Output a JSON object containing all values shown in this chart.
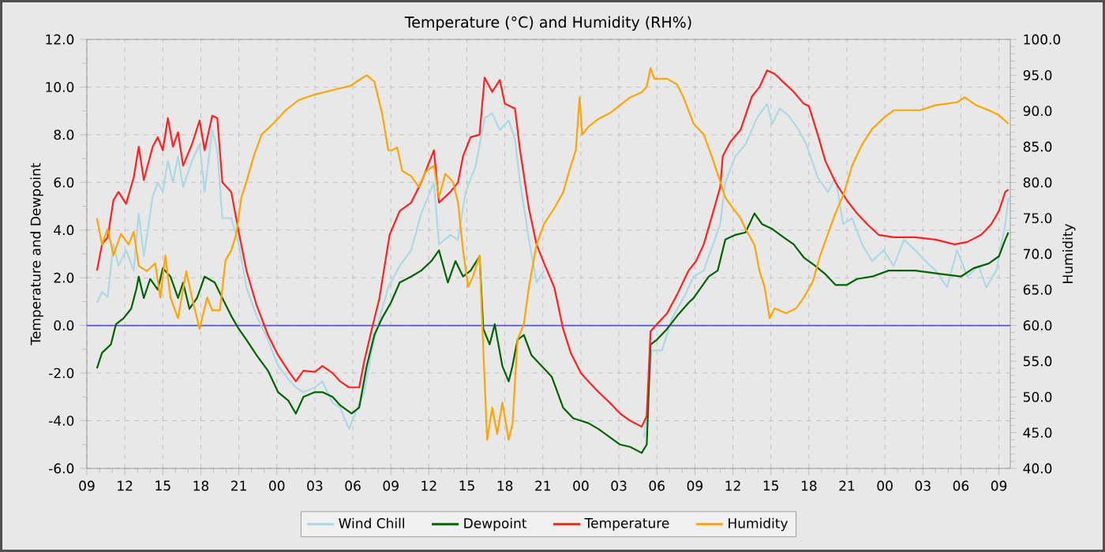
{
  "chart_data": {
    "type": "line",
    "title": "Temperature (°C) and Humidity (RH%)",
    "ylabel": "Temperature and Dewpoint",
    "y2label": "Humidity",
    "xlim": [
      9,
      81.9
    ],
    "ylim": [
      -6,
      12
    ],
    "y2lim": [
      40,
      100
    ],
    "xticks": [
      {
        "value": 9,
        "label": "09"
      },
      {
        "value": 12,
        "label": "12"
      },
      {
        "value": 15,
        "label": "15"
      },
      {
        "value": 18,
        "label": "18"
      },
      {
        "value": 21,
        "label": "21"
      },
      {
        "value": 24,
        "label": "00"
      },
      {
        "value": 27,
        "label": "03"
      },
      {
        "value": 30,
        "label": "06"
      },
      {
        "value": 33,
        "label": "09"
      },
      {
        "value": 36,
        "label": "12"
      },
      {
        "value": 39,
        "label": "15"
      },
      {
        "value": 42,
        "label": "18"
      },
      {
        "value": 45,
        "label": "21"
      },
      {
        "value": 48,
        "label": "00"
      },
      {
        "value": 51,
        "label": "03"
      },
      {
        "value": 54,
        "label": "06"
      },
      {
        "value": 57,
        "label": "09"
      },
      {
        "value": 60,
        "label": "12"
      },
      {
        "value": 63,
        "label": "15"
      },
      {
        "value": 66,
        "label": "18"
      },
      {
        "value": 69,
        "label": "21"
      },
      {
        "value": 72,
        "label": "00"
      },
      {
        "value": 75,
        "label": "03"
      },
      {
        "value": 78,
        "label": "06"
      },
      {
        "value": 81,
        "label": "09"
      }
    ],
    "yticks": [
      {
        "value": -6,
        "label": "-6.0"
      },
      {
        "value": -4,
        "label": "-4.0"
      },
      {
        "value": -2,
        "label": "-2.0"
      },
      {
        "value": 0,
        "label": "0.0"
      },
      {
        "value": 2,
        "label": "2.0"
      },
      {
        "value": 4,
        "label": "4.0"
      },
      {
        "value": 6,
        "label": "6.0"
      },
      {
        "value": 8,
        "label": "8.0"
      },
      {
        "value": 10,
        "label": "10.0"
      },
      {
        "value": 12,
        "label": "12.0"
      }
    ],
    "y2ticks": [
      {
        "value": 40,
        "label": "40.0"
      },
      {
        "value": 45,
        "label": "45.0"
      },
      {
        "value": 50,
        "label": "50.0"
      },
      {
        "value": 55,
        "label": "55.0"
      },
      {
        "value": 60,
        "label": "60.0"
      },
      {
        "value": 65,
        "label": "65.0"
      },
      {
        "value": 70,
        "label": "70.0"
      },
      {
        "value": 75,
        "label": "75.0"
      },
      {
        "value": 80,
        "label": "80.0"
      },
      {
        "value": 85,
        "label": "85.0"
      },
      {
        "value": 90,
        "label": "90.0"
      },
      {
        "value": 95,
        "label": "95.0"
      },
      {
        "value": 100,
        "label": "100.0"
      }
    ],
    "grid": true,
    "legend": "bottom",
    "ref_lines": [
      {
        "axis": "y",
        "value": 0,
        "color": "#6060e0"
      }
    ],
    "series": [
      {
        "name": "Wind Chill",
        "color": "#add8e6",
        "x": [
          9.8,
          10.2,
          10.65,
          11.1,
          11.5,
          12.1,
          12.7,
          13.1,
          13.5,
          14.2,
          14.6,
          15.0,
          15.4,
          15.8,
          16.2,
          16.6,
          17.3,
          17.9,
          18.3,
          18.9,
          19.3,
          19.7,
          20.4,
          21.0,
          21.6,
          22.4,
          23.3,
          24.1,
          24.9,
          25.5,
          26.1,
          27.0,
          27.6,
          28.4,
          29.0,
          29.7,
          30.5,
          30.9,
          31.5,
          32.1,
          32.8,
          33.7,
          34.6,
          35.4,
          36.4,
          36.8,
          37.7,
          38.3,
          38.9,
          39.7,
          40.4,
          41.0,
          41.6,
          42.3,
          42.8,
          43.2,
          43.9,
          44.5,
          45.1,
          49.0,
          53.0,
          53.6,
          54.4,
          55.2,
          56.1,
          56.9,
          57.7,
          59.0,
          59.4,
          60.2,
          61.0,
          61.9,
          62.7,
          63.1,
          63.7,
          64.4,
          65.2,
          65.8,
          66.7,
          67.5,
          68.1,
          68.7,
          69.4,
          70.2,
          71.0,
          71.9,
          72.7,
          73.5,
          74.4,
          75.2,
          76.0,
          76.9,
          77.7,
          78.5,
          79.4,
          80.0,
          80.8,
          81.5,
          81.75
        ],
        "values": [
          0.95,
          1.4,
          1.2,
          3.4,
          2.5,
          3.15,
          2.3,
          4.7,
          2.9,
          5.4,
          6.0,
          5.6,
          6.9,
          6.0,
          7.1,
          5.8,
          6.9,
          7.6,
          5.6,
          8.2,
          7.35,
          4.5,
          4.5,
          3.4,
          1.6,
          0.4,
          -0.6,
          -1.7,
          -2.25,
          -2.6,
          -2.8,
          -2.6,
          -2.35,
          -3.25,
          -3.45,
          -4.35,
          -3.25,
          -2.8,
          -1.05,
          0.3,
          1.6,
          2.5,
          3.15,
          4.7,
          6.0,
          3.4,
          3.8,
          3.6,
          5.6,
          6.7,
          8.7,
          8.9,
          8.2,
          8.6,
          7.8,
          6.0,
          3.6,
          1.8,
          2.3,
          null,
          -4.7,
          -1.05,
          -1.05,
          0.3,
          1.15,
          2.05,
          2.3,
          4.25,
          6.0,
          7.1,
          7.6,
          8.7,
          9.3,
          8.45,
          9.1,
          8.8,
          8.2,
          7.6,
          6.2,
          5.6,
          6.2,
          4.25,
          4.5,
          3.4,
          2.7,
          3.15,
          2.5,
          3.6,
          3.15,
          2.7,
          2.3,
          1.6,
          3.15,
          2.05,
          2.5,
          1.6,
          2.3,
          4.25,
          5.35
        ]
      },
      {
        "name": "Dewpoint",
        "color": "#006400",
        "x": [
          9.8,
          10.2,
          10.9,
          11.3,
          11.9,
          12.5,
          12.9,
          13.1,
          13.5,
          14.0,
          14.6,
          15.0,
          15.6,
          16.2,
          16.6,
          17.1,
          17.7,
          18.3,
          19.1,
          19.7,
          20.4,
          21.0,
          21.6,
          22.4,
          23.3,
          24.1,
          24.9,
          25.5,
          26.1,
          27.0,
          27.6,
          28.4,
          29.0,
          29.9,
          30.5,
          31.1,
          31.7,
          32.3,
          33.0,
          33.7,
          34.6,
          35.4,
          36.2,
          36.8,
          37.5,
          38.1,
          38.7,
          39.3,
          40.0,
          40.3,
          40.8,
          41.2,
          41.8,
          42.3,
          42.6,
          43.0,
          43.5,
          44.1,
          44.9,
          45.7,
          46.6,
          47.4,
          48.0,
          48.6,
          49.4,
          50.3,
          51.1,
          51.9,
          52.8,
          53.2,
          53.5,
          54.0,
          54.8,
          55.6,
          56.5,
          56.9,
          58.1,
          58.8,
          59.4,
          60.2,
          61.0,
          61.7,
          62.3,
          63.1,
          64.0,
          64.8,
          65.6,
          66.5,
          67.3,
          68.1,
          69.0,
          69.8,
          71.0,
          72.3,
          74.4,
          76.5,
          78.0,
          79.0,
          80.2,
          81.0,
          81.5,
          81.75
        ],
        "values": [
          -1.8,
          -1.15,
          -0.8,
          0.05,
          0.3,
          0.7,
          1.5,
          2.05,
          1.15,
          1.95,
          1.5,
          2.4,
          2.05,
          1.15,
          1.8,
          0.7,
          1.15,
          2.05,
          1.8,
          1.15,
          0.4,
          -0.15,
          -0.6,
          -1.25,
          -1.9,
          -2.8,
          -3.15,
          -3.7,
          -3.0,
          -2.8,
          -2.8,
          -3.0,
          -3.35,
          -3.7,
          -3.45,
          -1.7,
          -0.4,
          0.3,
          0.95,
          1.8,
          2.05,
          2.3,
          2.7,
          3.15,
          1.8,
          2.7,
          2.05,
          2.3,
          2.9,
          -0.15,
          -0.8,
          0.05,
          -1.7,
          -2.35,
          -1.7,
          -0.6,
          -0.4,
          -1.25,
          -1.7,
          -2.15,
          -3.45,
          -3.9,
          -4.0,
          -4.1,
          -4.35,
          -4.7,
          -5.0,
          -5.1,
          -5.35,
          -5.0,
          -0.8,
          -0.6,
          -0.15,
          0.4,
          0.95,
          1.15,
          2.05,
          2.3,
          3.6,
          3.8,
          3.9,
          4.7,
          4.25,
          4.05,
          3.7,
          3.4,
          2.85,
          2.5,
          2.15,
          1.7,
          1.7,
          1.95,
          2.05,
          2.3,
          2.3,
          2.15,
          2.05,
          2.4,
          2.6,
          2.9,
          3.6,
          3.9
        ]
      },
      {
        "name": "Temperature",
        "color": "#ff2020",
        "x": [
          9.8,
          10.2,
          10.65,
          11.1,
          11.5,
          12.1,
          12.7,
          13.1,
          13.5,
          14.2,
          14.6,
          15.0,
          15.4,
          15.8,
          16.2,
          16.6,
          17.3,
          17.9,
          18.3,
          18.9,
          19.3,
          19.7,
          20.4,
          21.0,
          21.6,
          22.4,
          23.3,
          24.1,
          24.9,
          25.5,
          26.1,
          27.0,
          27.6,
          28.4,
          29.0,
          29.7,
          30.5,
          30.9,
          31.5,
          32.1,
          32.9,
          33.7,
          34.6,
          35.4,
          36.4,
          36.8,
          37.7,
          38.3,
          38.7,
          39.3,
          40.0,
          40.4,
          41.0,
          41.6,
          42.0,
          42.8,
          43.2,
          43.9,
          44.5,
          45.1,
          45.9,
          46.6,
          47.2,
          48.0,
          48.6,
          49.4,
          50.3,
          51.1,
          51.9,
          52.8,
          53.2,
          53.5,
          54.0,
          54.8,
          55.6,
          56.5,
          57.1,
          57.7,
          58.3,
          59.0,
          59.2,
          59.8,
          60.6,
          61.5,
          62.1,
          62.7,
          63.3,
          64.0,
          64.8,
          65.6,
          66.0,
          66.7,
          67.3,
          68.1,
          69.0,
          69.8,
          70.6,
          71.5,
          72.7,
          74.4,
          76.0,
          77.5,
          78.5,
          79.6,
          80.4,
          81.0,
          81.5,
          81.75
        ],
        "values": [
          2.3,
          3.4,
          3.7,
          5.25,
          5.6,
          5.1,
          6.2,
          7.5,
          6.1,
          7.5,
          7.9,
          7.35,
          8.7,
          7.5,
          8.1,
          6.7,
          7.6,
          8.6,
          7.35,
          8.8,
          8.7,
          6.0,
          5.6,
          3.9,
          2.3,
          0.85,
          -0.4,
          -1.25,
          -1.9,
          -2.35,
          -1.9,
          -1.95,
          -1.7,
          -2.0,
          -2.35,
          -2.6,
          -2.6,
          -1.5,
          -0.15,
          1.15,
          3.8,
          4.8,
          5.15,
          6.0,
          7.35,
          5.15,
          5.6,
          6.0,
          7.1,
          7.9,
          8.0,
          10.4,
          9.8,
          10.3,
          9.3,
          9.1,
          7.35,
          4.9,
          3.4,
          2.6,
          1.6,
          -0.15,
          -1.15,
          -2.0,
          -2.35,
          -2.8,
          -3.25,
          -3.7,
          -4.0,
          -4.25,
          -3.8,
          -0.25,
          0.05,
          0.5,
          1.3,
          2.3,
          2.7,
          3.4,
          4.5,
          5.8,
          7.1,
          7.7,
          8.2,
          9.6,
          10.0,
          10.7,
          10.55,
          10.2,
          9.8,
          9.3,
          9.2,
          8.0,
          6.9,
          6.0,
          5.25,
          4.7,
          4.25,
          3.8,
          3.7,
          3.7,
          3.6,
          3.4,
          3.5,
          3.8,
          4.25,
          4.8,
          5.6,
          5.7
        ]
      },
      {
        "name": "Humidity",
        "color": "#ffa500",
        "axis": "y2",
        "x": [
          9.8,
          10.2,
          10.65,
          11.1,
          11.7,
          12.3,
          12.7,
          13.1,
          13.75,
          14.4,
          14.8,
          15.2,
          15.6,
          16.2,
          16.85,
          17.3,
          17.9,
          18.5,
          18.9,
          19.5,
          19.95,
          20.4,
          20.8,
          21.2,
          21.6,
          22.2,
          22.8,
          23.7,
          24.7,
          25.7,
          27.0,
          28.6,
          29.8,
          30.3,
          31.1,
          31.7,
          32.3,
          32.8,
          33.1,
          33.5,
          33.9,
          34.6,
          35.2,
          35.8,
          36.4,
          36.8,
          37.3,
          37.9,
          38.3,
          38.7,
          39.1,
          39.5,
          40.0,
          40.3,
          40.6,
          41.0,
          41.4,
          41.8,
          42.3,
          42.6,
          43.0,
          43.5,
          43.9,
          44.5,
          45.1,
          45.9,
          46.6,
          47.2,
          47.6,
          47.9,
          48.1,
          48.6,
          49.4,
          50.3,
          51.1,
          51.9,
          52.8,
          53.2,
          53.5,
          53.8,
          54.8,
          55.6,
          56.1,
          56.9,
          57.7,
          58.3,
          59.0,
          59.4,
          60.0,
          60.6,
          61.0,
          61.7,
          62.1,
          62.5,
          62.9,
          63.3,
          64.2,
          65.0,
          65.6,
          66.3,
          66.9,
          67.5,
          68.1,
          68.8,
          69.4,
          70.2,
          71.0,
          71.9,
          72.7,
          74.8,
          76.0,
          77.7,
          78.3,
          79.2,
          80.2,
          81.0,
          81.75
        ],
        "values": [
          75.0,
          71.3,
          73.5,
          69.8,
          72.8,
          71.3,
          73.1,
          68.3,
          67.6,
          68.7,
          63.9,
          69.8,
          63.9,
          61.0,
          67.6,
          63.9,
          59.5,
          63.9,
          62.1,
          62.1,
          69.1,
          70.5,
          72.8,
          77.9,
          80.1,
          83.8,
          86.7,
          88.2,
          90.1,
          91.5,
          92.3,
          93.0,
          93.5,
          94.1,
          95.0,
          94.1,
          89.7,
          84.5,
          84.5,
          84.9,
          81.6,
          80.9,
          79.4,
          81.6,
          82.3,
          77.9,
          81.2,
          80.1,
          77.2,
          70.5,
          65.4,
          66.9,
          69.8,
          56.6,
          44.0,
          48.5,
          44.8,
          49.2,
          44.0,
          46.2,
          58.0,
          60.2,
          65.4,
          71.3,
          74.2,
          76.4,
          78.6,
          82.3,
          84.5,
          91.9,
          86.7,
          87.8,
          88.9,
          89.7,
          90.8,
          91.9,
          92.6,
          93.4,
          96.0,
          94.5,
          94.5,
          93.7,
          91.9,
          88.2,
          86.7,
          83.8,
          80.1,
          77.9,
          76.4,
          75.0,
          73.5,
          71.3,
          67.6,
          65.4,
          61.0,
          62.4,
          61.7,
          62.4,
          63.9,
          66.1,
          69.8,
          72.8,
          75.7,
          78.6,
          82.3,
          85.3,
          87.5,
          89.0,
          90.1,
          90.1,
          90.8,
          91.2,
          91.9,
          90.8,
          90.1,
          89.4,
          88.2
        ]
      }
    ]
  }
}
